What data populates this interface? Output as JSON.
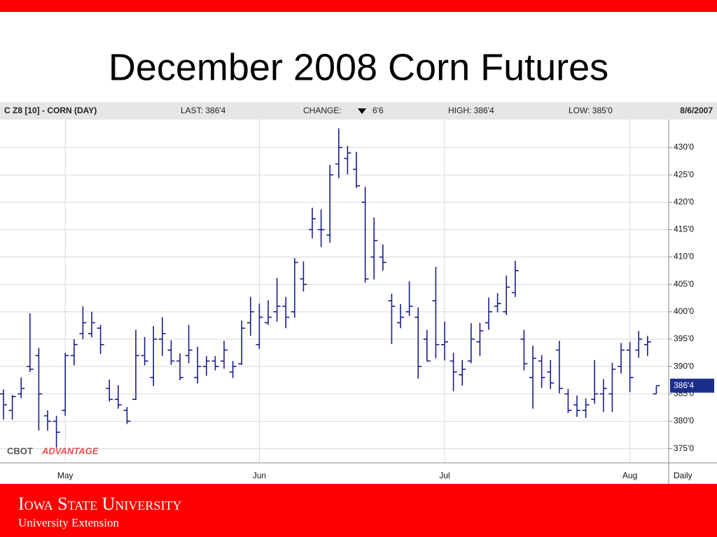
{
  "chart_data": {
    "type": "ohlc",
    "title": "December 2008 Corn Futures",
    "header": {
      "symbol": "C Z8 [10] - CORN (DAY)",
      "last": "LAST: 386'4",
      "change": "CHANGE:",
      "change_value": "6'6",
      "high": "HIGH: 386'4",
      "low": "LOW: 385'0",
      "date": "8/6/2007"
    },
    "brand": [
      "CBOT",
      "ADVANTAGE"
    ],
    "frequency": "Daily",
    "color": "#1c1c8e",
    "grid": true,
    "ylim": [
      372.4,
      435.1
    ],
    "yticks": [
      {
        "value": 375,
        "label": "375'0"
      },
      {
        "value": 380,
        "label": "380'0"
      },
      {
        "value": 385,
        "label": "385'0"
      },
      {
        "value": 390,
        "label": "390'0"
      },
      {
        "value": 395,
        "label": "395'0"
      },
      {
        "value": 400,
        "label": "400'0"
      },
      {
        "value": 405,
        "label": "405'0"
      },
      {
        "value": 410,
        "label": "410'0"
      },
      {
        "value": 415,
        "label": "415'0"
      },
      {
        "value": 420,
        "label": "420'0"
      },
      {
        "value": 425,
        "label": "425'0"
      },
      {
        "value": 430,
        "label": "430'0"
      }
    ],
    "last_price": {
      "value": 386.5,
      "label": "386'4"
    },
    "categories": [
      null,
      null,
      null,
      null,
      null,
      null,
      null,
      "May",
      null,
      null,
      null,
      null,
      null,
      null,
      null,
      null,
      null,
      null,
      null,
      null,
      null,
      null,
      null,
      null,
      null,
      null,
      null,
      null,
      null,
      "Jun",
      null,
      null,
      null,
      null,
      null,
      null,
      null,
      null,
      null,
      null,
      null,
      null,
      null,
      null,
      null,
      null,
      null,
      null,
      null,
      null,
      "Jul",
      null,
      null,
      null,
      null,
      null,
      null,
      null,
      null,
      null,
      null,
      null,
      null,
      null,
      null,
      null,
      null,
      null,
      null,
      null,
      null,
      "Aug",
      null,
      null,
      null
    ],
    "high": [
      385.8,
      384.8,
      388,
      399.7,
      393.4,
      382,
      381,
      392.5,
      395,
      401,
      400,
      397.6,
      387.6,
      386.6,
      382.6,
      396.7,
      395.4,
      397.4,
      399,
      394.8,
      392.4,
      397.6,
      393.6,
      391.9,
      391.9,
      394.7,
      391,
      398.4,
      402.7,
      401.5,
      402.1,
      406.2,
      402.7,
      409.8,
      409.2,
      419,
      418.7,
      426.8,
      433.5,
      430.3,
      429.2,
      422.8,
      417.2,
      412.3,
      403.3,
      401.4,
      405.6,
      400.8,
      396.7,
      408.2,
      398.2,
      392.5,
      391.2,
      397.9,
      398,
      402.6,
      403.4,
      406.6,
      409.3,
      396.7,
      393.8,
      392.1,
      391.2,
      394.7,
      385.9,
      384.7,
      384.2,
      391.2,
      387.7,
      390.7,
      394.3,
      394.5,
      396.5,
      395.6,
      386.5
    ],
    "low": [
      380.3,
      380.3,
      384.2,
      389,
      378.3,
      378.3,
      375.2,
      381,
      390.2,
      395,
      395.3,
      392.3,
      383.6,
      382.3,
      379.5,
      383.9,
      390.2,
      386.4,
      391.9,
      390.3,
      387.5,
      390.6,
      386.9,
      388.3,
      389.3,
      389.6,
      387.9,
      390.3,
      395.6,
      393.2,
      397.6,
      398.2,
      397,
      398.9,
      403.7,
      413.4,
      411.8,
      412.6,
      424.4,
      425.1,
      422.6,
      405.3,
      405.9,
      407.5,
      394.1,
      397,
      399.2,
      387.8,
      391,
      391.5,
      391.1,
      385.5,
      386.5,
      390.6,
      391.9,
      396.7,
      399.9,
      399.4,
      402.7,
      389.3,
      382.3,
      386.1,
      385.9,
      385.1,
      381.5,
      380.8,
      380.6,
      383.2,
      381.7,
      381.7,
      388.7,
      385.3,
      391.6,
      391.9,
      385
    ],
    "open": [
      385,
      382,
      385,
      390,
      392,
      381,
      380,
      382,
      392,
      396,
      396,
      397,
      386,
      384,
      382,
      384,
      392,
      388,
      395,
      393,
      391,
      392,
      388,
      390,
      391,
      391,
      389,
      390.5,
      398,
      394,
      398,
      400,
      401,
      400,
      406,
      415,
      415,
      414,
      427,
      428,
      426,
      420,
      410,
      410,
      402,
      398,
      400,
      399,
      395,
      402,
      394,
      391,
      388.5,
      391,
      394.5,
      398,
      401,
      400,
      403.5,
      395,
      388,
      391,
      389,
      393,
      385,
      383,
      382,
      384,
      385,
      385,
      390,
      393,
      393,
      394,
      385
    ],
    "close": [
      383,
      384.5,
      386,
      389.5,
      385,
      380,
      378,
      392,
      394,
      398,
      398,
      394,
      384,
      383,
      380,
      392,
      391,
      395,
      396,
      391,
      388,
      393,
      390,
      391,
      390,
      393,
      390,
      397,
      400,
      399,
      399,
      401,
      399,
      409,
      405,
      417,
      415,
      425,
      430,
      429,
      423,
      406,
      413,
      409,
      401,
      399,
      401,
      390,
      391,
      394,
      394.5,
      389,
      389.5,
      395,
      396.5,
      400,
      401.5,
      404.5,
      407.5,
      390.5,
      391.5,
      388,
      387,
      386,
      382,
      382,
      383,
      385,
      386,
      389.5,
      393,
      388,
      395,
      394.5,
      386.5
    ]
  },
  "footer": {
    "org": "Iowa State University",
    "unit": "University Extension"
  }
}
